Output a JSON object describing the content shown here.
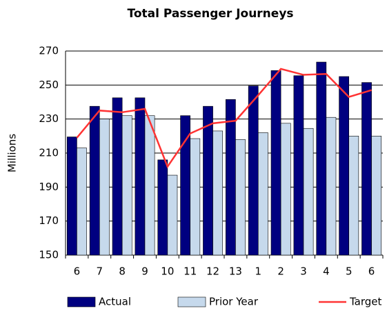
{
  "chart_data": {
    "type": "bar_line",
    "title": "Total Passenger Journeys",
    "y_label": "Millions",
    "categories": [
      "6",
      "7",
      "8",
      "9",
      "10",
      "11",
      "12",
      "13",
      "1",
      "2",
      "3",
      "4",
      "5",
      "6"
    ],
    "series": [
      {
        "name": "Actual",
        "type": "bar",
        "color": "#000080",
        "values": [
          219.5,
          237.5,
          242.5,
          242.5,
          206,
          232,
          237.5,
          241.5,
          249.5,
          258.5,
          255.5,
          263.5,
          255,
          251.5
        ]
      },
      {
        "name": "Prior Year",
        "type": "bar",
        "color": "#c6d9ec",
        "values": [
          213,
          230,
          232,
          232,
          197,
          218.5,
          223,
          218,
          222,
          227.5,
          224.5,
          231,
          220,
          220
        ]
      },
      {
        "name": "Target",
        "type": "line",
        "color": "#ff3333",
        "values": [
          219,
          235,
          234,
          236,
          202,
          221.5,
          227.5,
          229,
          244,
          259.5,
          256,
          256.5,
          243,
          247
        ]
      }
    ],
    "ylim": [
      150,
      270
    ],
    "yticks": [
      150,
      170,
      190,
      210,
      230,
      250,
      270
    ],
    "grid": true
  }
}
